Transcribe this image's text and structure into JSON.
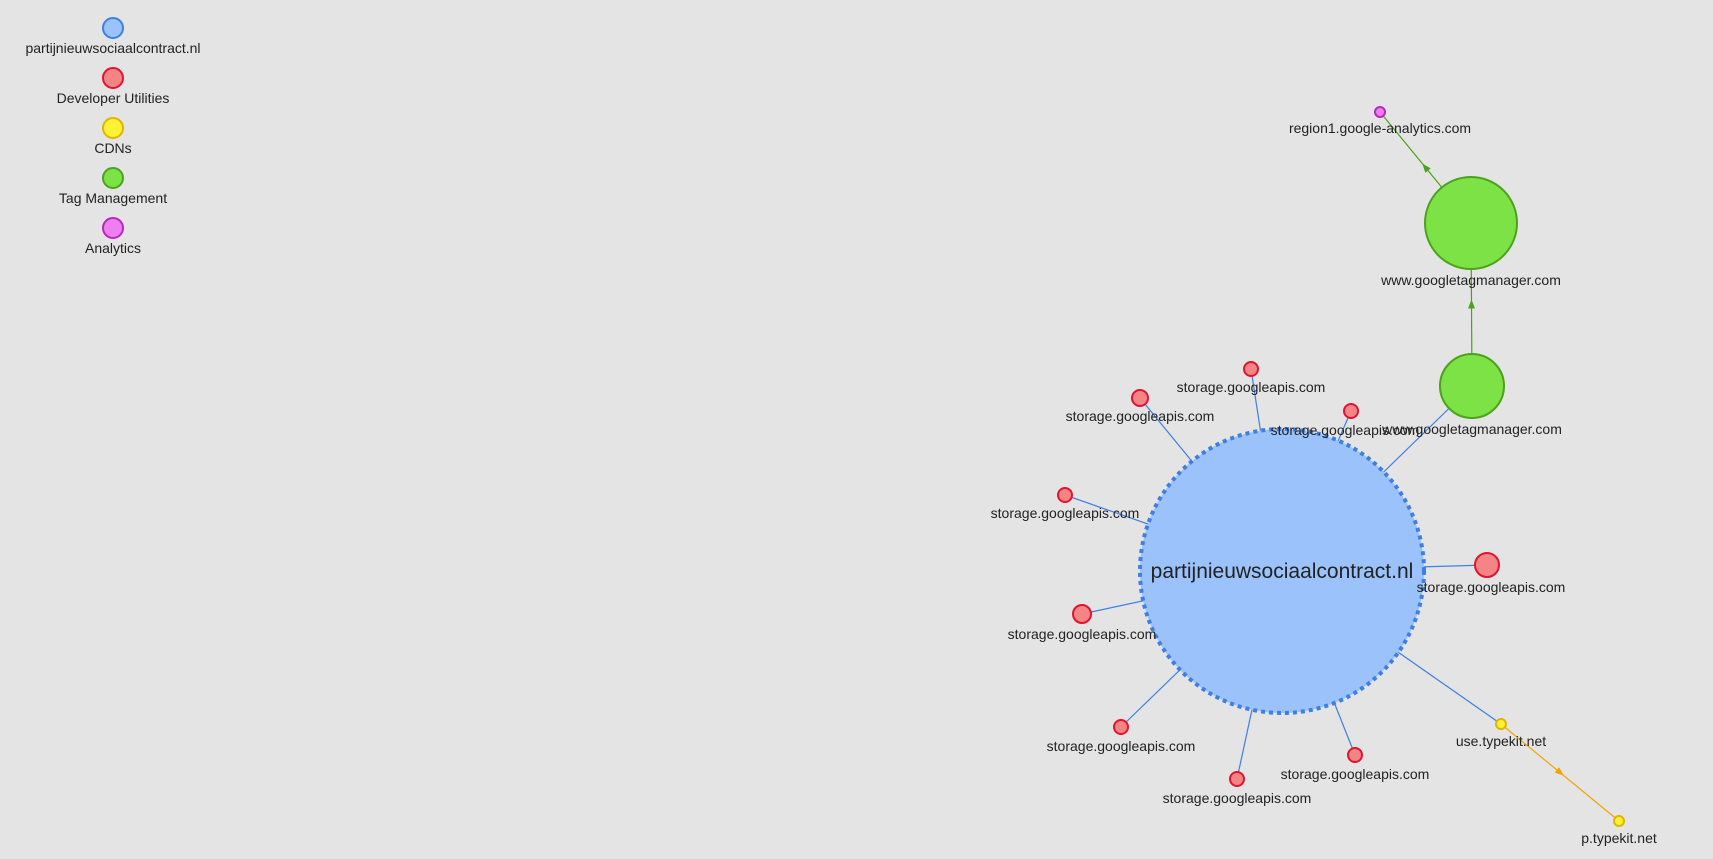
{
  "legend": [
    {
      "id": "site",
      "label": "partijnieuwsociaalcontract.nl",
      "fill": "#9bc2fb",
      "stroke": "#3d7fe3"
    },
    {
      "id": "dev",
      "label": "Developer Utilities",
      "fill": "#f58585",
      "stroke": "#e3132f"
    },
    {
      "id": "cdn",
      "label": "CDNs",
      "fill": "#fff233",
      "stroke": "#e0b400"
    },
    {
      "id": "tag",
      "label": "Tag Management",
      "fill": "#7de245",
      "stroke": "#4ba21b"
    },
    {
      "id": "analytics",
      "label": "Analytics",
      "fill": "#ee7ff0",
      "stroke": "#b826c4"
    }
  ],
  "graph": {
    "nodes": [
      {
        "id": "root",
        "label": "partijnieuwsociaalcontract.nl",
        "category": "site",
        "main": true
      },
      {
        "id": "gtm1",
        "label": "www.googletagmanager.com",
        "category": "tag"
      },
      {
        "id": "gtm2",
        "label": "www.googletagmanager.com",
        "category": "tag"
      },
      {
        "id": "ga",
        "label": "region1.google-analytics.com",
        "category": "analytics"
      },
      {
        "id": "s1",
        "label": "storage.googleapis.com",
        "category": "dev"
      },
      {
        "id": "s2",
        "label": "storage.googleapis.com",
        "category": "dev"
      },
      {
        "id": "s3",
        "label": "storage.googleapis.com",
        "category": "dev"
      },
      {
        "id": "s4",
        "label": "storage.googleapis.com",
        "category": "dev"
      },
      {
        "id": "s5",
        "label": "storage.googleapis.com",
        "category": "dev"
      },
      {
        "id": "s6",
        "label": "storage.googleapis.com",
        "category": "dev"
      },
      {
        "id": "s7",
        "label": "storage.googleapis.com",
        "category": "dev"
      },
      {
        "id": "s8",
        "label": "storage.googleapis.com",
        "category": "dev"
      },
      {
        "id": "s9",
        "label": "storage.googleapis.com",
        "category": "dev"
      },
      {
        "id": "tk1",
        "label": "use.typekit.net",
        "category": "cdn"
      },
      {
        "id": "tk2",
        "label": "p.typekit.net",
        "category": "cdn"
      }
    ],
    "edges": [
      {
        "from": "root",
        "to": "gtm1",
        "arrow": false
      },
      {
        "from": "gtm1",
        "to": "gtm2",
        "arrow": true
      },
      {
        "from": "gtm2",
        "to": "ga",
        "arrow": true
      },
      {
        "from": "root",
        "to": "s1",
        "arrow": false
      },
      {
        "from": "root",
        "to": "s2",
        "arrow": false
      },
      {
        "from": "root",
        "to": "s3",
        "arrow": false
      },
      {
        "from": "root",
        "to": "s4",
        "arrow": false
      },
      {
        "from": "root",
        "to": "s5",
        "arrow": false
      },
      {
        "from": "root",
        "to": "s6",
        "arrow": false
      },
      {
        "from": "root",
        "to": "s7",
        "arrow": false
      },
      {
        "from": "root",
        "to": "s8",
        "arrow": false
      },
      {
        "from": "root",
        "to": "s9",
        "arrow": false
      },
      {
        "from": "root",
        "to": "tk1",
        "arrow": false
      },
      {
        "from": "tk1",
        "to": "tk2",
        "arrow": true
      }
    ]
  }
}
